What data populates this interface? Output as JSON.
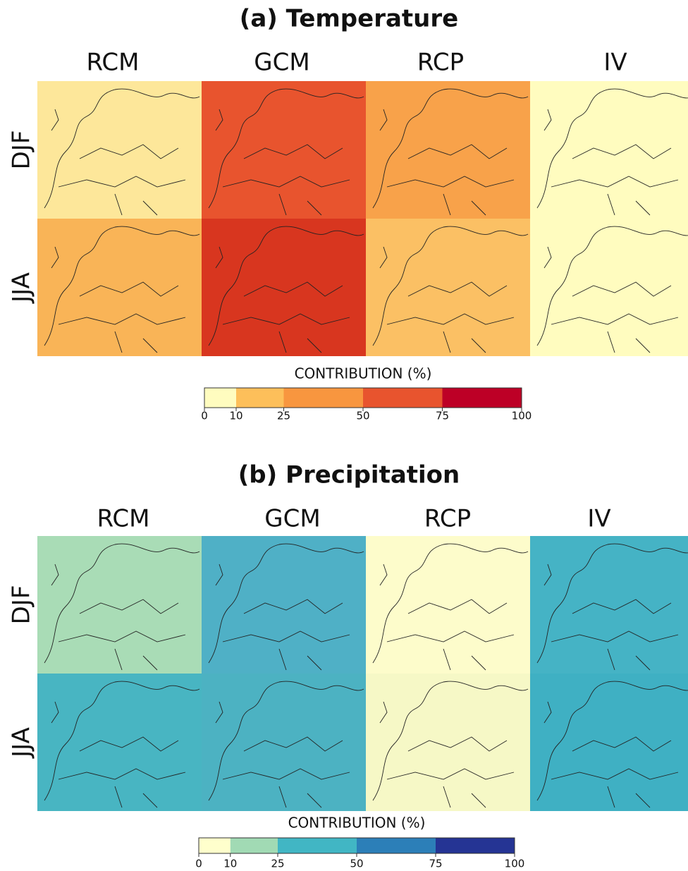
{
  "panels": [
    {
      "title": "(a) Temperature",
      "columns": [
        "RCM",
        "GCM",
        "RCP",
        "IV"
      ],
      "rows": [
        "DJF",
        "JJA"
      ],
      "colorbar": {
        "label": "CONTRIBUTION (%)",
        "ticks": [
          0,
          10,
          25,
          50,
          75,
          100
        ],
        "colors": [
          "#fffcbf",
          "#fdbf5a",
          "#f8963f",
          "#e8542e",
          "#bd0026"
        ]
      }
    },
    {
      "title": "(b) Precipitation",
      "columns": [
        "RCM",
        "GCM",
        "RCP",
        "IV"
      ],
      "rows": [
        "DJF",
        "JJA"
      ],
      "colorbar": {
        "label": "CONTRIBUTION (%)",
        "ticks": [
          0,
          10,
          25,
          50,
          75,
          100
        ],
        "colors": [
          "#ffffcc",
          "#a1dab4",
          "#41b6c4",
          "#2c7fb8",
          "#253494"
        ]
      }
    }
  ]
}
